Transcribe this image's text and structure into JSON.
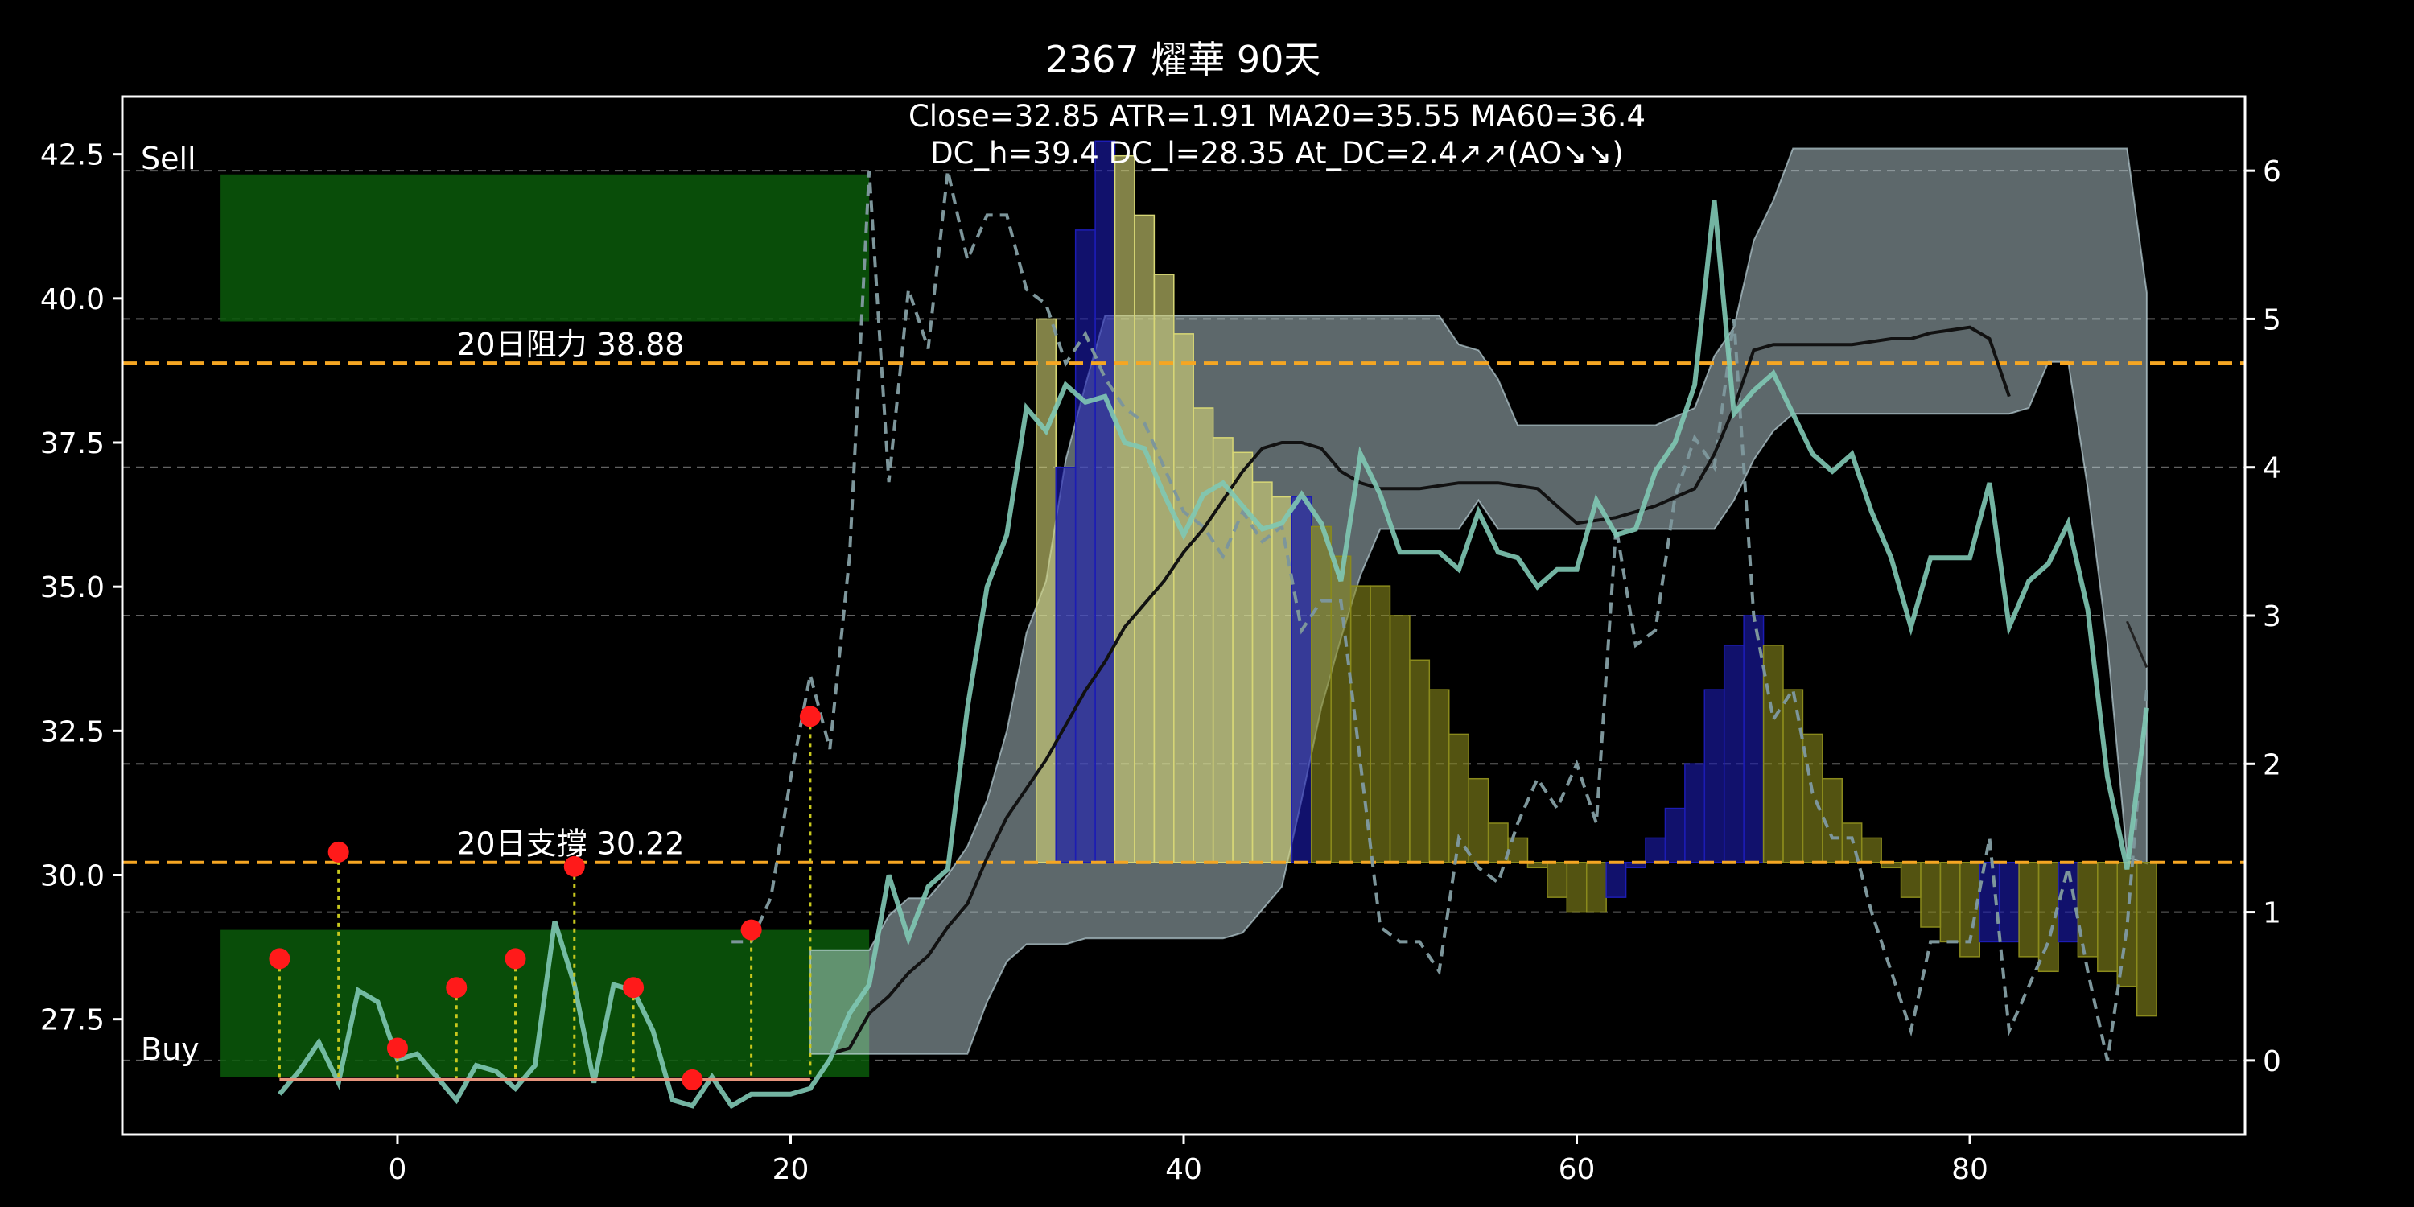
{
  "chart_data": {
    "type": "bar",
    "title": "2367 燿華 90天",
    "info_lines": [
      "Close=32.85 ATR=1.91 MA20=35.55 MA60=36.4",
      "DC_h=39.4 DC_l=28.35 At_DC=2.4↗↗(AO↘↘)"
    ],
    "xlim": [
      -14,
      94
    ],
    "ylim": [
      25.5,
      43.5
    ],
    "y2lim": [
      -0.5,
      6.5
    ],
    "xticks": [
      0,
      20,
      40,
      60,
      80
    ],
    "yticks": [
      27.5,
      30.0,
      32.5,
      35.0,
      37.5,
      40.0,
      42.5
    ],
    "y2ticks": [
      0,
      1,
      2,
      3,
      4,
      5,
      6
    ],
    "colors": {
      "background": "#000000",
      "close": "#7fc8b4",
      "ma_black": "#111111",
      "ma_thin": "#000000",
      "right_dashed": "#7d969b",
      "channel": "#cfe7ee",
      "hline": "#f5a623",
      "zone": "#0b5a0b",
      "bar_yellow": "#d7d776",
      "bar_olive": "#8a8a1c",
      "bar_blue": "#1c1cb4",
      "marker": "#ff1a1a",
      "stem": "#c8c81e",
      "base_line": "#e8947c",
      "grid": "#7a7a7a"
    },
    "zones": [
      {
        "label": "Sell",
        "x0": -9,
        "x1": 24,
        "y0": 39.6,
        "y1": 42.15
      },
      {
        "label": "Buy",
        "x0": -9,
        "x1": 24,
        "y0": 26.5,
        "y1": 29.05
      }
    ],
    "hlines": [
      {
        "y": 38.88,
        "label": "20日阻力 38.88",
        "label_x": 3
      },
      {
        "y": 30.22,
        "label": "20日支撐 30.22",
        "label_x": 3
      }
    ],
    "right_gridlines": [
      0,
      1,
      2,
      3,
      4,
      5,
      6
    ],
    "markers": {
      "points": [
        {
          "x": -6,
          "y": 28.55
        },
        {
          "x": -3,
          "y": 30.4
        },
        {
          "x": 0,
          "y": 27.0
        },
        {
          "x": 3,
          "y": 28.05
        },
        {
          "x": 6,
          "y": 28.55
        },
        {
          "x": 9,
          "y": 30.15
        },
        {
          "x": 12,
          "y": 28.05
        },
        {
          "x": 15,
          "y": 26.45
        },
        {
          "x": 18,
          "y": 29.05
        },
        {
          "x": 21,
          "y": 32.75
        }
      ],
      "base_y": 26.45,
      "base_x": [
        -6,
        21
      ]
    },
    "channel_upper": [
      [
        21,
        28.7
      ],
      [
        24,
        28.7
      ],
      [
        25,
        29.3
      ],
      [
        26,
        29.6
      ],
      [
        27,
        29.6
      ],
      [
        28,
        30.0
      ],
      [
        29,
        30.5
      ],
      [
        30,
        31.3
      ],
      [
        31,
        32.5
      ],
      [
        32,
        34.2
      ],
      [
        33,
        35.1
      ],
      [
        34,
        37.2
      ],
      [
        35,
        38.5
      ],
      [
        36,
        39.7
      ],
      [
        50,
        39.7
      ],
      [
        53,
        39.7
      ],
      [
        54,
        39.2
      ],
      [
        55,
        39.1
      ],
      [
        56,
        38.6
      ],
      [
        57,
        37.8
      ],
      [
        58,
        37.8
      ],
      [
        64,
        37.8
      ],
      [
        66,
        38.1
      ],
      [
        67,
        39.0
      ],
      [
        68,
        39.5
      ],
      [
        69,
        41.0
      ],
      [
        70,
        41.7
      ],
      [
        71,
        42.6
      ],
      [
        88,
        42.6
      ],
      [
        89,
        40.1
      ]
    ],
    "channel_lower": [
      [
        89,
        30.2
      ],
      [
        88,
        30.3
      ],
      [
        87,
        34.0
      ],
      [
        86,
        36.7
      ],
      [
        85,
        38.9
      ],
      [
        84,
        38.9
      ],
      [
        83,
        38.1
      ],
      [
        82,
        38.0
      ],
      [
        71,
        38.0
      ],
      [
        70,
        37.7
      ],
      [
        69,
        37.2
      ],
      [
        68,
        36.5
      ],
      [
        67,
        36.0
      ],
      [
        66,
        36.0
      ],
      [
        56,
        36.0
      ],
      [
        55,
        36.5
      ],
      [
        54,
        36.0
      ],
      [
        50,
        36.0
      ],
      [
        49,
        35.2
      ],
      [
        48,
        34.1
      ],
      [
        47,
        32.9
      ],
      [
        46,
        31.3
      ],
      [
        45,
        29.8
      ],
      [
        44,
        29.4
      ],
      [
        43,
        29.0
      ],
      [
        42,
        28.9
      ],
      [
        36,
        28.9
      ],
      [
        35,
        28.9
      ],
      [
        34,
        28.8
      ],
      [
        33,
        28.8
      ],
      [
        32,
        28.8
      ],
      [
        31,
        28.5
      ],
      [
        30,
        27.8
      ],
      [
        29,
        26.9
      ],
      [
        28,
        26.9
      ],
      [
        27,
        26.9
      ],
      [
        26,
        26.9
      ],
      [
        25,
        26.9
      ],
      [
        24,
        26.9
      ],
      [
        21,
        26.9
      ]
    ],
    "close_series": {
      "name": "",
      "x": [
        -6,
        -5,
        -4,
        -3,
        -2,
        -1,
        0,
        1,
        2,
        3,
        4,
        5,
        6,
        7,
        8,
        9,
        10,
        11,
        12,
        13,
        14,
        15,
        16,
        17,
        18,
        19,
        20,
        21,
        22,
        23,
        24,
        25,
        26,
        27,
        28,
        29,
        30,
        31,
        32,
        33,
        34,
        35,
        36,
        37,
        38,
        39,
        40,
        41,
        42,
        43,
        44,
        45,
        46,
        47,
        48,
        49,
        50,
        51,
        52,
        53,
        54,
        55,
        56,
        57,
        58,
        59,
        60,
        61,
        62,
        63,
        64,
        65,
        66,
        67,
        68,
        69,
        70,
        71,
        72,
        73,
        74,
        75,
        76,
        77,
        78,
        79,
        80,
        81,
        82,
        83,
        84,
        85,
        86,
        87,
        88,
        89
      ],
      "y": [
        26.2,
        26.6,
        27.1,
        26.4,
        28.0,
        27.8,
        26.8,
        26.9,
        26.5,
        26.1,
        26.7,
        26.6,
        26.3,
        26.7,
        29.2,
        28.1,
        26.4,
        28.1,
        28.0,
        27.3,
        26.1,
        26.0,
        26.5,
        26.0,
        26.2,
        26.2,
        26.2,
        26.3,
        26.8,
        27.6,
        28.1,
        30.0,
        28.9,
        29.8,
        30.1,
        32.9,
        35.0,
        35.9,
        38.1,
        37.7,
        38.5,
        38.2,
        38.3,
        37.5,
        37.4,
        36.6,
        35.9,
        36.6,
        36.8,
        36.4,
        36.0,
        36.1,
        36.6,
        36.1,
        35.1,
        37.3,
        36.6,
        35.6,
        35.6,
        35.6,
        35.3,
        36.3,
        35.6,
        35.5,
        35.0,
        35.3,
        35.3,
        36.5,
        35.9,
        36.0,
        37.0,
        37.5,
        38.5,
        41.7,
        38.0,
        38.4,
        38.7,
        38.0,
        37.3,
        37.0,
        37.3,
        36.3,
        35.5,
        34.3,
        35.5,
        35.5,
        35.5,
        36.8,
        34.3,
        35.1,
        35.4,
        36.1,
        34.6,
        31.7,
        30.1,
        32.9
      ]
    },
    "ma_black": {
      "x": [
        22,
        23,
        24,
        25,
        26,
        27,
        28,
        29,
        30,
        31,
        32,
        33,
        34,
        35,
        36,
        37,
        38,
        39,
        40,
        41,
        42,
        43,
        44,
        45,
        46,
        47,
        48,
        49,
        50,
        52,
        54,
        56,
        58,
        60,
        62,
        64,
        66,
        67,
        68,
        69,
        70,
        72,
        74,
        76,
        77,
        78,
        80,
        81,
        82
      ],
      "y": [
        26.9,
        27.0,
        27.6,
        27.9,
        28.3,
        28.6,
        29.1,
        29.5,
        30.3,
        31.0,
        31.5,
        32.0,
        32.6,
        33.2,
        33.7,
        34.3,
        34.7,
        35.1,
        35.6,
        36.0,
        36.5,
        37.0,
        37.4,
        37.5,
        37.5,
        37.4,
        37.0,
        36.8,
        36.7,
        36.7,
        36.8,
        36.8,
        36.7,
        36.1,
        36.2,
        36.4,
        36.7,
        37.3,
        38.1,
        39.1,
        39.2,
        39.2,
        39.2,
        39.3,
        39.3,
        39.4,
        39.5,
        39.3,
        38.3
      ]
    },
    "ma_thin": {
      "x": [
        88,
        89
      ],
      "y": [
        34.4,
        33.6
      ]
    },
    "right_dashed": {
      "x": [
        17,
        18,
        19,
        20,
        21,
        22,
        23,
        24,
        25,
        26,
        27,
        28,
        29,
        30,
        31,
        32,
        33,
        34,
        35,
        36,
        37,
        38,
        39,
        40,
        41,
        42,
        43,
        44,
        45,
        46,
        47,
        48,
        49,
        50,
        51,
        52,
        53,
        54,
        55,
        56,
        57,
        58,
        59,
        60,
        61,
        62,
        63,
        64,
        65,
        66,
        67,
        68,
        69,
        70,
        71,
        72,
        73,
        74,
        75,
        76,
        77,
        78,
        79,
        80,
        81,
        82,
        83,
        84,
        85,
        86,
        87,
        88,
        89
      ],
      "y": [
        0.8,
        0.8,
        1.1,
        1.9,
        2.6,
        2.1,
        3.4,
        6.0,
        3.9,
        5.2,
        4.8,
        6.0,
        5.4,
        5.7,
        5.7,
        5.2,
        5.1,
        4.7,
        4.9,
        4.6,
        4.4,
        4.3,
        4.0,
        3.7,
        3.6,
        3.4,
        3.7,
        3.5,
        3.6,
        2.9,
        3.1,
        3.1,
        2.0,
        0.9,
        0.8,
        0.8,
        0.6,
        1.5,
        1.3,
        1.2,
        1.6,
        1.9,
        1.7,
        2.0,
        1.6,
        3.6,
        2.8,
        2.9,
        3.8,
        4.2,
        4.0,
        5.0,
        3.0,
        2.3,
        2.5,
        1.8,
        1.5,
        1.5,
        1.0,
        0.6,
        0.2,
        0.8,
        0.8,
        0.8,
        1.5,
        0.2,
        0.5,
        0.8,
        1.3,
        0.6,
        0.0,
        0.9,
        2.5
      ]
    },
    "ao_bars": [
      {
        "x": 33,
        "v": 5.0,
        "c": "yellow"
      },
      {
        "x": 34,
        "v": 4.0,
        "c": "blue"
      },
      {
        "x": 35,
        "v": 5.6,
        "c": "blue"
      },
      {
        "x": 36,
        "v": 6.2,
        "c": "blue"
      },
      {
        "x": 37,
        "v": 6.1,
        "c": "yellow"
      },
      {
        "x": 38,
        "v": 5.7,
        "c": "yellow"
      },
      {
        "x": 39,
        "v": 5.3,
        "c": "yellow"
      },
      {
        "x": 40,
        "v": 4.9,
        "c": "yellow"
      },
      {
        "x": 41,
        "v": 4.4,
        "c": "yellow"
      },
      {
        "x": 42,
        "v": 4.2,
        "c": "yellow"
      },
      {
        "x": 43,
        "v": 4.1,
        "c": "yellow"
      },
      {
        "x": 44,
        "v": 3.9,
        "c": "yellow"
      },
      {
        "x": 45,
        "v": 3.8,
        "c": "yellow"
      },
      {
        "x": 46,
        "v": 3.8,
        "c": "blue"
      },
      {
        "x": 47,
        "v": 3.6,
        "c": "yellow"
      },
      {
        "x": 48,
        "v": 3.4,
        "c": "yellow"
      },
      {
        "x": 49,
        "v": 3.2,
        "c": "yellow"
      },
      {
        "x": 50,
        "v": 3.2,
        "c": "yellow"
      },
      {
        "x": 51,
        "v": 3.0,
        "c": "yellow"
      },
      {
        "x": 52,
        "v": 2.7,
        "c": "yellow"
      },
      {
        "x": 53,
        "v": 2.5,
        "c": "yellow"
      },
      {
        "x": 54,
        "v": 2.2,
        "c": "yellow"
      },
      {
        "x": 55,
        "v": 1.9,
        "c": "yellow"
      },
      {
        "x": 56,
        "v": 1.6,
        "c": "yellow"
      },
      {
        "x": 57,
        "v": 1.5,
        "c": "yellow"
      },
      {
        "x": 58,
        "v": 1.3,
        "c": "yellow"
      },
      {
        "x": 59,
        "v": 1.1,
        "c": "yellow"
      },
      {
        "x": 60,
        "v": 1.0,
        "c": "yellow"
      },
      {
        "x": 61,
        "v": 1.0,
        "c": "yellow"
      },
      {
        "x": 62,
        "v": 1.1,
        "c": "blue"
      },
      {
        "x": 63,
        "v": 1.3,
        "c": "blue"
      },
      {
        "x": 64,
        "v": 1.5,
        "c": "blue"
      },
      {
        "x": 65,
        "v": 1.7,
        "c": "blue"
      },
      {
        "x": 66,
        "v": 2.0,
        "c": "blue"
      },
      {
        "x": 67,
        "v": 2.5,
        "c": "blue"
      },
      {
        "x": 68,
        "v": 2.8,
        "c": "blue"
      },
      {
        "x": 69,
        "v": 3.0,
        "c": "blue"
      },
      {
        "x": 70,
        "v": 2.8,
        "c": "yellow"
      },
      {
        "x": 71,
        "v": 2.5,
        "c": "yellow"
      },
      {
        "x": 72,
        "v": 2.2,
        "c": "yellow"
      },
      {
        "x": 73,
        "v": 1.9,
        "c": "yellow"
      },
      {
        "x": 74,
        "v": 1.6,
        "c": "yellow"
      },
      {
        "x": 75,
        "v": 1.5,
        "c": "yellow"
      },
      {
        "x": 76,
        "v": 1.3,
        "c": "yellow"
      },
      {
        "x": 77,
        "v": 1.1,
        "c": "yellow"
      },
      {
        "x": 78,
        "v": 0.9,
        "c": "yellow"
      },
      {
        "x": 79,
        "v": 0.8,
        "c": "yellow"
      },
      {
        "x": 80,
        "v": 0.7,
        "c": "yellow"
      },
      {
        "x": 81,
        "v": 0.8,
        "c": "blue"
      },
      {
        "x": 82,
        "v": 0.8,
        "c": "blue"
      },
      {
        "x": 83,
        "v": 0.7,
        "c": "yellow"
      },
      {
        "x": 84,
        "v": 0.6,
        "c": "yellow"
      },
      {
        "x": 85,
        "v": 0.8,
        "c": "blue"
      },
      {
        "x": 86,
        "v": 0.7,
        "c": "yellow"
      },
      {
        "x": 87,
        "v": 0.6,
        "c": "yellow"
      },
      {
        "x": 88,
        "v": 0.5,
        "c": "yellow"
      },
      {
        "x": 89,
        "v": 0.3,
        "c": "yellow"
      }
    ],
    "ao_base": 30.22
  }
}
